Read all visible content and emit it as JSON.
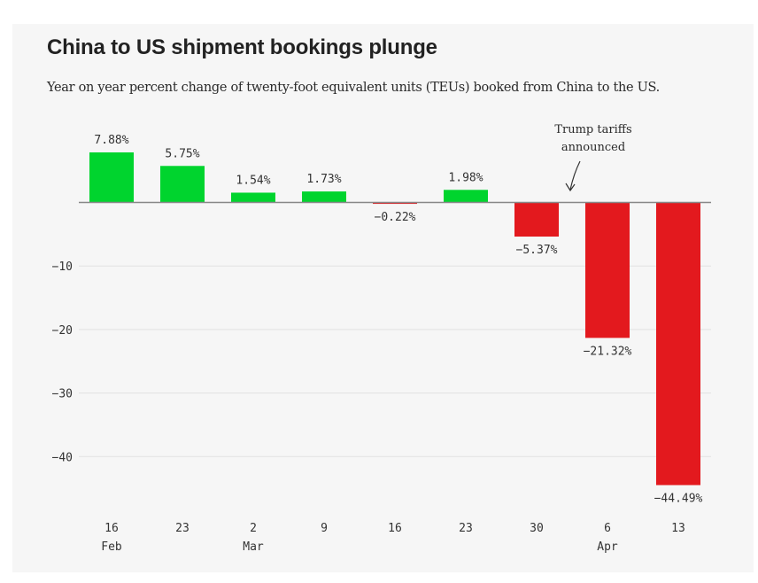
{
  "header": {
    "title": "China to US shipment bookings plunge",
    "subtitle": "Year on year percent change of twenty-foot equivalent units (TEUs) booked from China to the US."
  },
  "chart_data": {
    "type": "bar",
    "title": "China to US shipment bookings plunge",
    "subtitle": "Year on year percent change of twenty-foot equivalent units (TEUs) booked from China to the US.",
    "xlabel": "",
    "ylabel": "",
    "categories": [
      "16 Feb",
      "23",
      "2 Mar",
      "9",
      "16",
      "23",
      "30",
      "6 Apr",
      "13"
    ],
    "x_tick_labels": [
      {
        "day": "16",
        "month": "Feb"
      },
      {
        "day": "23",
        "month": ""
      },
      {
        "day": "2",
        "month": "Mar"
      },
      {
        "day": "9",
        "month": ""
      },
      {
        "day": "16",
        "month": ""
      },
      {
        "day": "23",
        "month": ""
      },
      {
        "day": "30",
        "month": ""
      },
      {
        "day": "6",
        "month": "Apr"
      },
      {
        "day": "13",
        "month": ""
      }
    ],
    "values": [
      7.88,
      5.75,
      1.54,
      1.73,
      -0.22,
      1.98,
      -5.37,
      -21.32,
      -44.49
    ],
    "data_labels": [
      "7.88%",
      "5.75%",
      "1.54%",
      "1.73%",
      "−0.22%",
      "1.98%",
      "−5.37%",
      "−21.32%",
      "−44.49%"
    ],
    "ylim": [
      -48,
      8
    ],
    "yticks": [
      -10,
      -20,
      -30,
      -40
    ],
    "ytick_labels": [
      "−10",
      "−20",
      "−30",
      "−40"
    ],
    "grid": true,
    "legend": null,
    "colors": {
      "positive": "#00d42e",
      "negative": "#e3191e",
      "zero_line": "#888888",
      "grid": "#e2e2e2"
    },
    "annotations": [
      {
        "text_lines": [
          "Trump tariffs",
          "announced"
        ],
        "between_categories": [
          "30",
          "6 Apr"
        ],
        "arrow": true
      }
    ]
  }
}
